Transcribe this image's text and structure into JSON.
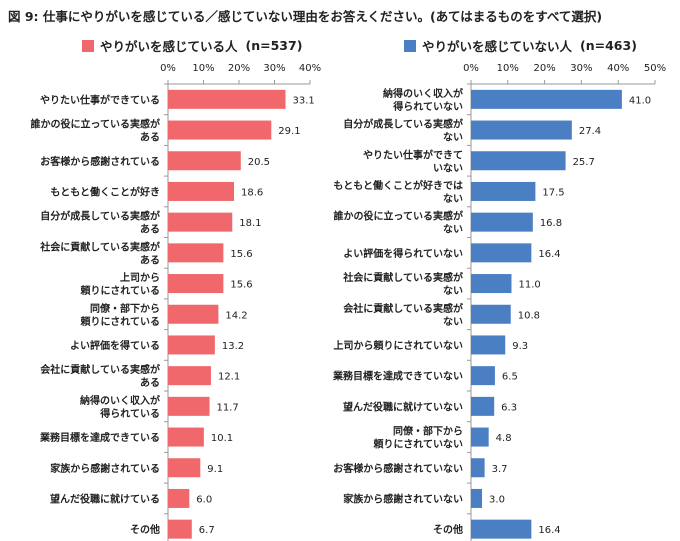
{
  "title": "図 9: 仕事にやりがいを感じている／感じていない理由をお答えください。(あてはまるものをすべて選択)",
  "chart_data": [
    {
      "type": "bar",
      "orientation": "horizontal",
      "series_name": "やりがいを感じている人",
      "n_label": "(n=537)",
      "color": "#f0686b",
      "xlim": [
        0,
        40
      ],
      "xticks": [
        "0%",
        "10%",
        "20%",
        "30%",
        "40%"
      ],
      "unit": "%",
      "categories": [
        "やりたい仕事ができている",
        "誰かの役に立っている実感が\nある",
        "お客様から感謝されている",
        "もともと働くことが好き",
        "自分が成長している実感が\nある",
        "社会に貢献している実感が\nある",
        "上司から\n頼りにされている",
        "同僚・部下から\n頼りにされている",
        "よい評価を得ている",
        "会社に貢献している実感が\nある",
        "納得のいく収入が\n得られている",
        "業務目標を達成できている",
        "家族から感謝されている",
        "望んだ役職に就けている",
        "その他"
      ],
      "values": [
        33.1,
        29.1,
        20.5,
        18.6,
        18.1,
        15.6,
        15.6,
        14.2,
        13.2,
        12.1,
        11.7,
        10.1,
        9.1,
        6.0,
        6.7
      ],
      "value_labels": [
        "33.1",
        "29.1",
        "20.5",
        "18.6",
        "18.1",
        "15.6",
        "15.6",
        "14.2",
        "13.2",
        "12.1",
        "11.7",
        "10.1",
        "9.1",
        "6.0",
        "6.7"
      ]
    },
    {
      "type": "bar",
      "orientation": "horizontal",
      "series_name": "やりがいを感じていない人",
      "n_label": "(n=463)",
      "color": "#4a7fc4",
      "xlim": [
        0,
        50
      ],
      "xticks": [
        "0%",
        "10%",
        "20%",
        "30%",
        "40%",
        "50%"
      ],
      "unit": "%",
      "categories": [
        "納得のいく収入が\n得られていない",
        "自分が成長している実感が\nない",
        "やりたい仕事ができて\nいない",
        "もともと働くことが好きでは\nない",
        "誰かの役に立っている実感が\nない",
        "よい評価を得られていない",
        "社会に貢献している実感が\nない",
        "会社に貢献している実感が\nない",
        "上司から頼りにされていない",
        "業務目標を達成できていない",
        "望んだ役職に就けていない",
        "同僚・部下から\n頼りにされていない",
        "お客様から感謝されていない",
        "家族から感謝されていない",
        "その他"
      ],
      "values": [
        41.0,
        27.4,
        25.7,
        17.5,
        16.8,
        16.4,
        11.0,
        10.8,
        9.3,
        6.5,
        6.3,
        4.8,
        3.7,
        3.0,
        16.4
      ],
      "value_labels": [
        "41.0",
        "27.4",
        "25.7",
        "17.5",
        "16.8",
        "16.4",
        "11.0",
        "10.8",
        "9.3",
        "6.5",
        "6.3",
        "4.8",
        "3.7",
        "3.0",
        "16.4"
      ]
    }
  ]
}
